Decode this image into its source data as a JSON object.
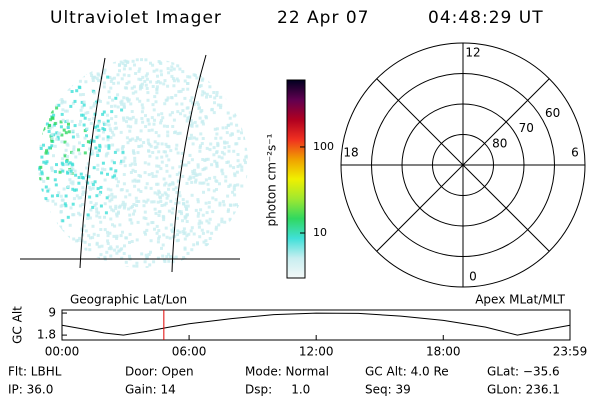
{
  "header": {
    "title": "Ultraviolet Imager",
    "date": "22 Apr 07",
    "time": "04:48:29 UT"
  },
  "image": {
    "label": "Geographic Lat/Lon"
  },
  "colorbar": {
    "label": "photon cm⁻²s⁻¹",
    "scale": "log",
    "lim": [
      3,
      600
    ],
    "ticks": [
      10,
      100
    ],
    "colors": [
      "#f4f8f8",
      "#c8eef0",
      "#40e0d8",
      "#30d860",
      "#a0e830",
      "#f0f000",
      "#f0a000",
      "#f03020",
      "#b00020",
      "#600050",
      "#000020"
    ]
  },
  "polar": {
    "label": "Apex MLat/MLT",
    "lat_lim": [
      50,
      90
    ],
    "lat_ticks": [
      60,
      70,
      80
    ],
    "mlt_ticks": [
      0,
      6,
      12,
      18
    ]
  },
  "timeline": {
    "ylabel": "GC Alt",
    "ylim": [
      0.2,
      10
    ],
    "yticks": [
      1.8,
      9.0
    ],
    "xlim": [
      0,
      23.983
    ],
    "xticks": [
      {
        "value": 0,
        "label": "00:00"
      },
      {
        "value": 6,
        "label": "06:00"
      },
      {
        "value": 12,
        "label": "12:00"
      },
      {
        "value": 18,
        "label": "18:00"
      },
      {
        "value": 23.983,
        "label": "23:59"
      }
    ],
    "x": [
      0,
      1,
      2,
      2.9,
      4,
      5,
      6,
      8,
      10,
      12,
      14,
      16,
      18,
      20,
      21.5,
      23,
      23.983
    ],
    "values": [
      5.0,
      3.8,
      2.5,
      1.8,
      3.0,
      4.3,
      5.5,
      7.2,
      8.5,
      9.0,
      8.9,
      8.0,
      6.6,
      4.4,
      1.8,
      3.8,
      5.0
    ],
    "color": "#000",
    "marker": 4.808,
    "marker_color": "#e00000"
  },
  "footer": {
    "rows": [
      [
        "Flt: LBHL",
        "Door: Open",
        "Mode: Normal",
        "GC Alt: 4.0 Re",
        "GLat: −35.6"
      ],
      [
        "IP: 36.0",
        "Gain: 14",
        "Dsp:     1.0",
        "Seq: 39",
        "GLon: 236.1"
      ]
    ]
  }
}
